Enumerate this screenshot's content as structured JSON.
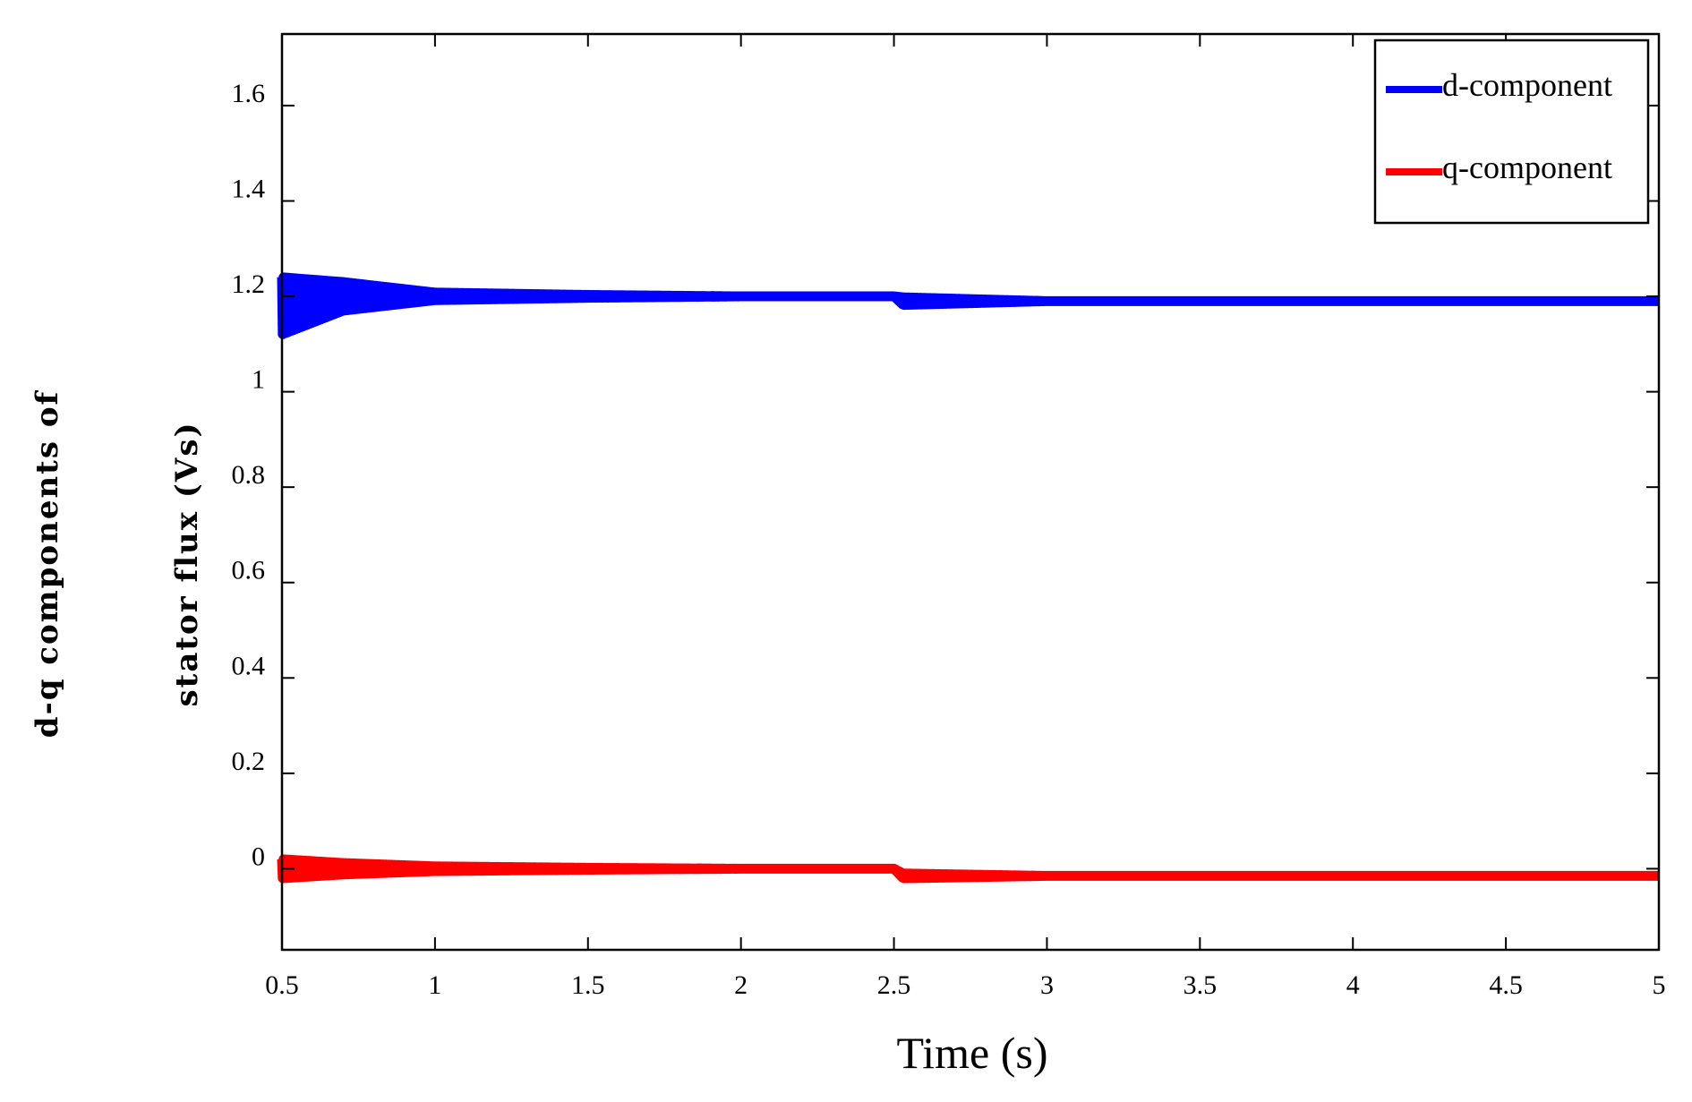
{
  "chart_data": {
    "type": "line",
    "xlabel": "Time (s)",
    "ylabel_lines": [
      "d-q components of",
      "stator flux (Vs)"
    ],
    "xlim": [
      0.5,
      5
    ],
    "ylim": [
      -0.17,
      1.75
    ],
    "x_ticks": [
      0.5,
      1,
      1.5,
      2,
      2.5,
      3,
      3.5,
      4,
      4.5,
      5
    ],
    "x_tick_labels": [
      "0.5",
      "1",
      "1.5",
      "2",
      "2.5",
      "3",
      "3.5",
      "4",
      "4.5",
      "5"
    ],
    "y_ticks": [
      0,
      0.2,
      0.4,
      0.6,
      0.8,
      1,
      1.2,
      1.4,
      1.6
    ],
    "y_tick_labels": [
      "0",
      "0.2",
      "0.4",
      "0.6",
      "0.8",
      "1",
      "1.2",
      "1.4",
      "1.6"
    ],
    "grid": false,
    "legend_position": "top-right",
    "series": [
      {
        "name": "d-component",
        "color": "#0000ff",
        "x": [
          0.5,
          0.7,
          1.0,
          1.5,
          2.0,
          2.5,
          2.53,
          3.0,
          4.0,
          5.0
        ],
        "y": [
          1.18,
          1.2,
          1.2,
          1.2,
          1.2,
          1.2,
          1.19,
          1.19,
          1.19,
          1.19
        ],
        "oscillation_amplitude": [
          0.06,
          0.03,
          0.008,
          0.003,
          0.0,
          0.0,
          0.008,
          0.0,
          0.0,
          0.0
        ]
      },
      {
        "name": "q-component",
        "color": "#ff0000",
        "x": [
          0.5,
          0.7,
          1.0,
          1.5,
          2.0,
          2.5,
          2.53,
          3.0,
          4.0,
          5.0
        ],
        "y": [
          0.0,
          0.0,
          0.0,
          0.0,
          0.0,
          0.0,
          -0.015,
          -0.015,
          -0.015,
          -0.015
        ],
        "oscillation_amplitude": [
          0.02,
          0.012,
          0.005,
          0.002,
          0.0,
          0.0,
          0.005,
          0.0,
          0.0,
          0.0
        ]
      }
    ]
  }
}
